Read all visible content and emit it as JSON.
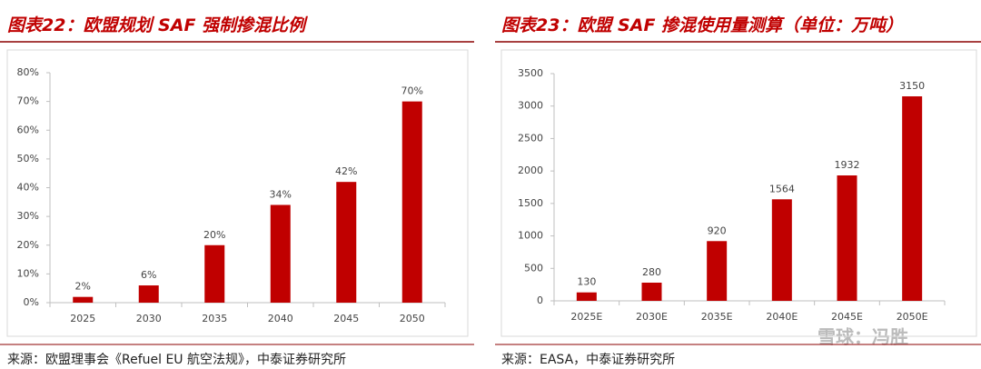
{
  "chart_data": [
    {
      "type": "bar",
      "title": "图表22：欧盟规划 SAF 强制掺混比例",
      "categories": [
        "2025",
        "2030",
        "2035",
        "2040",
        "2045",
        "2050"
      ],
      "values": [
        2,
        6,
        20,
        34,
        42,
        70
      ],
      "value_labels": [
        "2%",
        "6%",
        "20%",
        "34%",
        "42%",
        "70%"
      ],
      "color": "#c00000",
      "ylim": [
        0,
        80
      ],
      "yticks": [
        {
          "value": 0,
          "label": "0%"
        },
        {
          "value": 10,
          "label": "10%"
        },
        {
          "value": 20,
          "label": "20%"
        },
        {
          "value": 30,
          "label": "30%"
        },
        {
          "value": 40,
          "label": "40%"
        },
        {
          "value": 50,
          "label": "50%"
        },
        {
          "value": 60,
          "label": "60%"
        },
        {
          "value": 70,
          "label": "70%"
        },
        {
          "value": 80,
          "label": "80%"
        }
      ],
      "source": "来源：欧盟理事会《Refuel EU 航空法规》，中泰证券研究所"
    },
    {
      "type": "bar",
      "title": "图表23：欧盟 SAF 掺混使用量测算（单位：万吨）",
      "categories": [
        "2025E",
        "2030E",
        "2035E",
        "2040E",
        "2045E",
        "2050E"
      ],
      "values": [
        130,
        280,
        920,
        1564,
        1932,
        3150
      ],
      "color": "#c00000",
      "ylim": [
        0,
        3500
      ],
      "yticks": [
        0,
        500,
        1000,
        1500,
        2000,
        2500,
        3000,
        3500
      ],
      "source": "来源：EASA，中泰证券研究所"
    }
  ],
  "watermark": "雪球：冯胜"
}
